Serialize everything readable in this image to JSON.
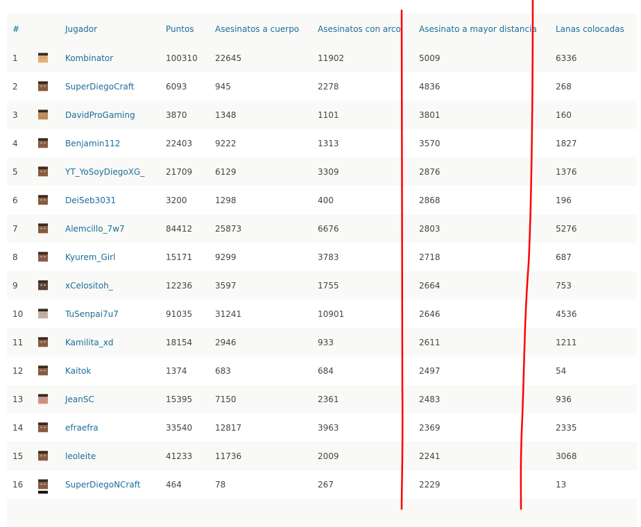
{
  "table": {
    "headers": [
      "#",
      "",
      "Jugador",
      "Puntos",
      "Asesinatos a cuerpo",
      "Asesinatos con arco",
      "Asesinato a mayor distancia",
      "Lanas colocadas"
    ],
    "rows": [
      {
        "rank": "1",
        "player": "Kombinator",
        "points": "100310",
        "melee": "22645",
        "bow": "11902",
        "distance": "5009",
        "wool": "6336",
        "skin": "#e8b070"
      },
      {
        "rank": "2",
        "player": "SuperDiegoCraft",
        "points": "6093",
        "melee": "945",
        "bow": "2278",
        "distance": "4836",
        "wool": "268",
        "skin": "#8a5a3c"
      },
      {
        "rank": "3",
        "player": "DavidProGaming",
        "points": "3870",
        "melee": "1348",
        "bow": "1101",
        "distance": "3801",
        "wool": "160",
        "skin": "#c08a50"
      },
      {
        "rank": "4",
        "player": "Benjamin112",
        "points": "22403",
        "melee": "9222",
        "bow": "1313",
        "distance": "3570",
        "wool": "1827",
        "skin": "#8a5a3c"
      },
      {
        "rank": "5",
        "player": "YT_YoSoyDiegoXG_",
        "points": "21709",
        "melee": "6129",
        "bow": "3309",
        "distance": "2876",
        "wool": "1376",
        "skin": "#8a5a3c"
      },
      {
        "rank": "6",
        "player": "DeiSeb3031",
        "points": "3200",
        "melee": "1298",
        "bow": "400",
        "distance": "2868",
        "wool": "196",
        "skin": "#8a5a3c"
      },
      {
        "rank": "7",
        "player": "Alemcillo_7w7",
        "points": "84412",
        "melee": "25873",
        "bow": "6676",
        "distance": "2803",
        "wool": "5276",
        "skin": "#8a5a3c"
      },
      {
        "rank": "8",
        "player": "Kyurem_Girl",
        "points": "15171",
        "melee": "9299",
        "bow": "3783",
        "distance": "2718",
        "wool": "687",
        "skin": "#8a5a3c"
      },
      {
        "rank": "9",
        "player": "xCelositoh_",
        "points": "12236",
        "melee": "3597",
        "bow": "1755",
        "distance": "2664",
        "wool": "753",
        "skin": "#5a4030"
      },
      {
        "rank": "10",
        "player": "TuSenpai7u7",
        "points": "91035",
        "melee": "31241",
        "bow": "10901",
        "distance": "2646",
        "wool": "4536",
        "skin": "#c8b0a0"
      },
      {
        "rank": "11",
        "player": "Kamilita_xd",
        "points": "18154",
        "melee": "2946",
        "bow": "933",
        "distance": "2611",
        "wool": "1211",
        "skin": "#8a5a3c"
      },
      {
        "rank": "12",
        "player": "Kaitok",
        "points": "1374",
        "melee": "683",
        "bow": "684",
        "distance": "2497",
        "wool": "54",
        "skin": "#8a5a3c"
      },
      {
        "rank": "13",
        "player": "JeanSC",
        "points": "15395",
        "melee": "7150",
        "bow": "2361",
        "distance": "2483",
        "wool": "936",
        "skin": "#d09080"
      },
      {
        "rank": "14",
        "player": "efraefra",
        "points": "33540",
        "melee": "12817",
        "bow": "3963",
        "distance": "2369",
        "wool": "2335",
        "skin": "#8a5a3c"
      },
      {
        "rank": "15",
        "player": "leoleite",
        "points": "41233",
        "melee": "11736",
        "bow": "2009",
        "distance": "2241",
        "wool": "3068",
        "skin": "#8a5a3c"
      },
      {
        "rank": "16",
        "player": "SuperDiegoNCraft",
        "points": "464",
        "melee": "78",
        "bow": "267",
        "distance": "2229",
        "wool": "13",
        "skin": "#8a5a3c"
      }
    ]
  },
  "colors": {
    "link": "#1a6e99",
    "annotation": "#ff0000"
  }
}
